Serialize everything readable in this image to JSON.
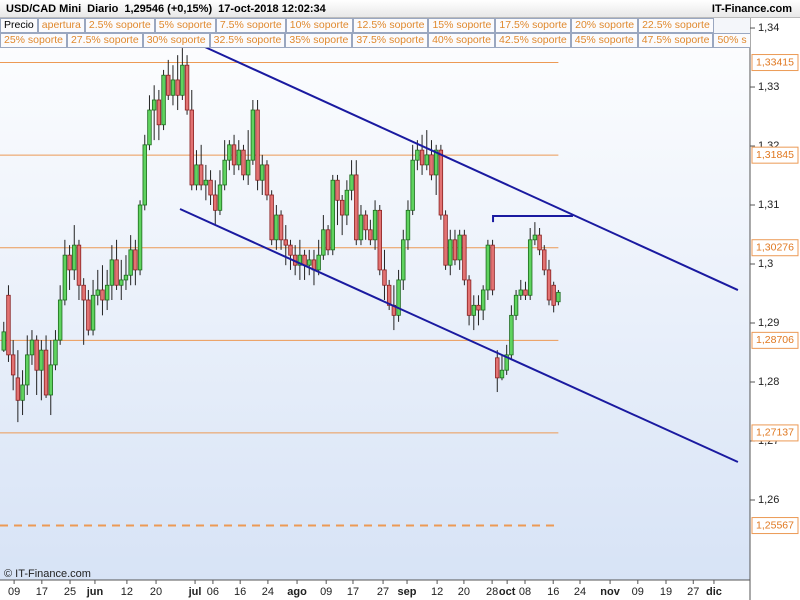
{
  "chart_data": {
    "type": "candlestick",
    "title": "USD/CAD Mini",
    "period": "Diario",
    "last": "1,29546 (+0,15%)",
    "timestamp": "17-oct-2018 12:02:34",
    "source": "IT-Finance.com",
    "footer": "© IT-Finance.com",
    "buttons": [
      [
        "Precio",
        "apertura",
        "2.5% soporte",
        "5% soporte",
        "7.5% soporte",
        "10% soporte",
        "12.5% soporte",
        "15% soporte",
        "17.5% soporte",
        "20% soporte",
        "22.5% soporte"
      ],
      [
        "25% soporte",
        "27.5% soporte",
        "30% soporte",
        "32.5% soporte",
        "35% soporte",
        "37.5% soporte",
        "40% soporte",
        "42.5% soporte",
        "45% soporte",
        "47.5% soporte",
        "50% s"
      ]
    ],
    "open": [
      1.2854,
      1.2947,
      1.2846,
      1.2807,
      1.2769,
      1.2795,
      1.2846,
      1.2871,
      1.282,
      1.2854,
      1.2778,
      1.2829,
      1.2871,
      1.2939,
      1.3015,
      1.299,
      1.3032,
      1.2964,
      1.2939,
      1.2888,
      1.2947,
      1.2956,
      1.2939,
      1.2964,
      1.3007,
      1.2964,
      1.2973,
      1.2981,
      1.3024,
      1.299,
      1.31,
      1.3202,
      1.3261,
      1.3278,
      1.3236,
      1.332,
      1.3286,
      1.3312,
      1.3286,
      1.3337,
      1.3261,
      1.3134,
      1.3168,
      1.3134,
      1.3142,
      1.3117,
      1.3091,
      1.3134,
      1.3176,
      1.3202,
      1.3168,
      1.3193,
      1.3151,
      1.3176,
      1.3261,
      1.3142,
      1.3168,
      1.3117,
      1.3041,
      1.3083,
      1.3041,
      1.3032,
      1.3015,
      1.2998,
      1.3015,
      1.2998,
      1.3007,
      1.299,
      1.3015,
      1.3058,
      1.3024,
      1.3142,
      1.3108,
      1.3083,
      1.3125,
      1.3151,
      1.3041,
      1.3083,
      1.3058,
      1.3041,
      1.3091,
      1.299,
      1.2964,
      1.293,
      1.2913,
      1.2973,
      1.3041,
      1.3091,
      1.3176,
      1.3193,
      1.3168,
      1.3185,
      1.3151,
      1.3193,
      1.3083,
      1.2998,
      1.3041,
      1.3007,
      1.3049,
      1.2973,
      1.2913,
      1.293,
      1.2922,
      1.2956,
      1.3032,
      1.2841,
      1.2807,
      1.282,
      1.2846,
      1.2913,
      1.2947,
      1.2956,
      1.2947,
      1.3041,
      1.3049,
      1.3024,
      1.299,
      1.2964,
      1.2936
    ],
    "high": [
      1.2902,
      1.2964,
      1.2871,
      1.2854,
      1.282,
      1.2879,
      1.2888,
      1.2879,
      1.2871,
      1.2879,
      1.2871,
      1.2888,
      1.2964,
      1.3041,
      1.3032,
      1.3066,
      1.3041,
      1.2976,
      1.2956,
      1.2973,
      1.299,
      1.2998,
      1.299,
      1.3032,
      1.3041,
      1.3007,
      1.3015,
      1.3049,
      1.3041,
      1.3108,
      1.3219,
      1.3286,
      1.3303,
      1.3295,
      1.3329,
      1.3346,
      1.3337,
      1.3354,
      1.3366,
      1.3354,
      1.3295,
      1.3193,
      1.3202,
      1.3168,
      1.3159,
      1.3142,
      1.3159,
      1.321,
      1.321,
      1.3219,
      1.321,
      1.3202,
      1.3227,
      1.3278,
      1.3278,
      1.3185,
      1.3176,
      1.3125,
      1.31,
      1.3091,
      1.3066,
      1.3041,
      1.3032,
      1.3041,
      1.3024,
      1.3024,
      1.3024,
      1.3041,
      1.3083,
      1.3066,
      1.3151,
      1.3151,
      1.3117,
      1.3142,
      1.3176,
      1.3176,
      1.31,
      1.3091,
      1.3075,
      1.3108,
      1.31,
      1.3024,
      1.2973,
      1.2964,
      1.299,
      1.3058,
      1.3108,
      1.3202,
      1.321,
      1.3219,
      1.3227,
      1.321,
      1.3202,
      1.3202,
      1.3091,
      1.3058,
      1.3058,
      1.3058,
      1.3058,
      1.2981,
      1.2947,
      1.2947,
      1.2964,
      1.3041,
      1.3041,
      1.2854,
      1.2846,
      1.2863,
      1.293,
      1.2956,
      1.2973,
      1.297,
      1.3061,
      1.3071,
      1.3061,
      1.3032,
      1.3007,
      1.297,
      1.2956
    ],
    "low": [
      1.2851,
      1.2834,
      1.2786,
      1.2732,
      1.2744,
      1.2778,
      1.2829,
      1.2778,
      1.2769,
      1.2773,
      1.2744,
      1.282,
      1.2863,
      1.293,
      1.2956,
      1.2973,
      1.2939,
      1.2863,
      1.2879,
      1.2879,
      1.293,
      1.2913,
      1.2922,
      1.2939,
      1.2956,
      1.2939,
      1.2956,
      1.2964,
      1.2964,
      1.2981,
      1.3091,
      1.3193,
      1.321,
      1.321,
      1.3227,
      1.3278,
      1.3269,
      1.3261,
      1.3278,
      1.3253,
      1.3125,
      1.3125,
      1.3125,
      1.3108,
      1.31,
      1.3066,
      1.3083,
      1.3125,
      1.3159,
      1.3151,
      1.3159,
      1.3142,
      1.3134,
      1.3168,
      1.3125,
      1.3117,
      1.3108,
      1.3032,
      1.3024,
      1.3024,
      1.2998,
      1.299,
      1.2981,
      1.2973,
      1.2973,
      1.2981,
      1.2964,
      1.2981,
      1.3007,
      1.3015,
      1.3015,
      1.3066,
      1.3049,
      1.3066,
      1.3108,
      1.3032,
      1.3032,
      1.3041,
      1.3032,
      1.3024,
      1.2981,
      1.2939,
      1.2922,
      1.2888,
      1.2902,
      1.2956,
      1.3024,
      1.3083,
      1.3159,
      1.3151,
      1.3159,
      1.3142,
      1.3117,
      1.3075,
      1.299,
      1.2981,
      1.2998,
      1.299,
      1.2964,
      1.2896,
      1.2888,
      1.2896,
      1.2905,
      1.2939,
      1.2947,
      1.2783,
      1.2803,
      1.2812,
      1.2837,
      1.2905,
      1.2939,
      1.2939,
      1.2939,
      1.3032,
      1.3015,
      1.2981,
      1.293,
      1.2918,
      1.293
    ],
    "close": [
      1.2885,
      1.2846,
      1.2812,
      1.2769,
      1.2795,
      1.2846,
      1.2871,
      1.282,
      1.2854,
      1.2778,
      1.2829,
      1.2871,
      1.2939,
      1.3015,
      1.299,
      1.3032,
      1.2964,
      1.2939,
      1.2888,
      1.2947,
      1.2956,
      1.2939,
      1.2964,
      1.3007,
      1.2964,
      1.2973,
      1.2981,
      1.3024,
      1.299,
      1.31,
      1.3202,
      1.3261,
      1.3278,
      1.3236,
      1.332,
      1.3286,
      1.3312,
      1.3286,
      1.3337,
      1.3261,
      1.3134,
      1.3168,
      1.3134,
      1.3142,
      1.3117,
      1.3091,
      1.3134,
      1.3176,
      1.3202,
      1.3168,
      1.3193,
      1.3151,
      1.3176,
      1.3261,
      1.3142,
      1.3168,
      1.3117,
      1.3041,
      1.3083,
      1.3041,
      1.3032,
      1.3015,
      1.2998,
      1.3015,
      1.2998,
      1.3007,
      1.299,
      1.3015,
      1.3058,
      1.3024,
      1.3142,
      1.3108,
      1.3083,
      1.3125,
      1.3151,
      1.3041,
      1.3083,
      1.3058,
      1.3041,
      1.3091,
      1.299,
      1.2964,
      1.293,
      1.2913,
      1.2973,
      1.3041,
      1.3091,
      1.3176,
      1.3193,
      1.3168,
      1.3185,
      1.3151,
      1.3193,
      1.3083,
      1.2998,
      1.3041,
      1.3007,
      1.3049,
      1.2973,
      1.2913,
      1.293,
      1.2922,
      1.2956,
      1.3032,
      1.2956,
      1.2807,
      1.282,
      1.2846,
      1.2913,
      1.2947,
      1.2956,
      1.2947,
      1.3041,
      1.3049,
      1.3024,
      1.299,
      1.2939,
      1.293,
      1.2952
    ],
    "up_color": "#5fd35f",
    "down_color": "#e27272",
    "ylim": [
      1.24644,
      1.34475
    ],
    "yticks": [
      {
        "value": 1.34,
        "label": "1,34"
      },
      {
        "value": 1.33,
        "label": "1,33"
      },
      {
        "value": 1.32,
        "label": "1,32"
      },
      {
        "value": 1.31,
        "label": "1,31"
      },
      {
        "value": 1.3,
        "label": "1,3"
      },
      {
        "value": 1.29,
        "label": "1,29"
      },
      {
        "value": 1.28,
        "label": "1,28"
      },
      {
        "value": 1.27,
        "label": "1,27"
      },
      {
        "value": 1.26,
        "label": "1,26"
      }
    ],
    "xlim": [
      -0.8,
      158.77
    ],
    "xticks": [
      {
        "value": 2.2,
        "label": "09"
      },
      {
        "value": 8.1,
        "label": "17"
      },
      {
        "value": 14.1,
        "label": "25"
      },
      {
        "value": 19.4,
        "label": "jun"
      },
      {
        "value": 26.2,
        "label": "12"
      },
      {
        "value": 32.4,
        "label": "20"
      },
      {
        "value": 40.7,
        "label": "jul"
      },
      {
        "value": 44.5,
        "label": "06"
      },
      {
        "value": 50.3,
        "label": "16"
      },
      {
        "value": 56.2,
        "label": "24"
      },
      {
        "value": 62.4,
        "label": "ago"
      },
      {
        "value": 68.6,
        "label": "09"
      },
      {
        "value": 74.3,
        "label": "17"
      },
      {
        "value": 80.7,
        "label": "27"
      },
      {
        "value": 85.8,
        "label": "sep"
      },
      {
        "value": 92.2,
        "label": "12"
      },
      {
        "value": 97.9,
        "label": "20"
      },
      {
        "value": 103.9,
        "label": "28"
      },
      {
        "value": 107.1,
        "label": "oct"
      },
      {
        "value": 110.9,
        "label": "08"
      },
      {
        "value": 116.9,
        "label": "16"
      },
      {
        "value": 122.6,
        "label": "24"
      },
      {
        "value": 129.0,
        "label": "nov"
      },
      {
        "value": 134.9,
        "label": "09"
      },
      {
        "value": 140.9,
        "label": "19"
      },
      {
        "value": 146.7,
        "label": "27"
      },
      {
        "value": 151.1,
        "label": "dic"
      }
    ],
    "levels": {
      "values": [
        1.33415,
        1.31845,
        1.30276,
        1.28706,
        1.27137,
        1.25567
      ],
      "value_labels": [
        "1,33415",
        "1,31845",
        "1,30276",
        "1,28706",
        "1,27137",
        "1,25567"
      ],
      "styles": [
        "solid",
        "solid",
        "solid",
        "solid",
        "solid",
        "dashed"
      ],
      "color": "#ec9a55"
    },
    "trendlines": {
      "color": "#1a1aa0",
      "lines": [
        {
          "x": [
            42.8,
            156.2
          ],
          "y": [
            1.33678,
            1.29559
          ]
        },
        {
          "x": [
            37.5,
            156.2
          ],
          "y": [
            1.30932,
            1.26644
          ]
        },
        {
          "x": [
            104.1,
            104.1,
            121.1
          ],
          "y": [
            1.3071,
            1.30814,
            1.30814
          ]
        }
      ]
    }
  }
}
